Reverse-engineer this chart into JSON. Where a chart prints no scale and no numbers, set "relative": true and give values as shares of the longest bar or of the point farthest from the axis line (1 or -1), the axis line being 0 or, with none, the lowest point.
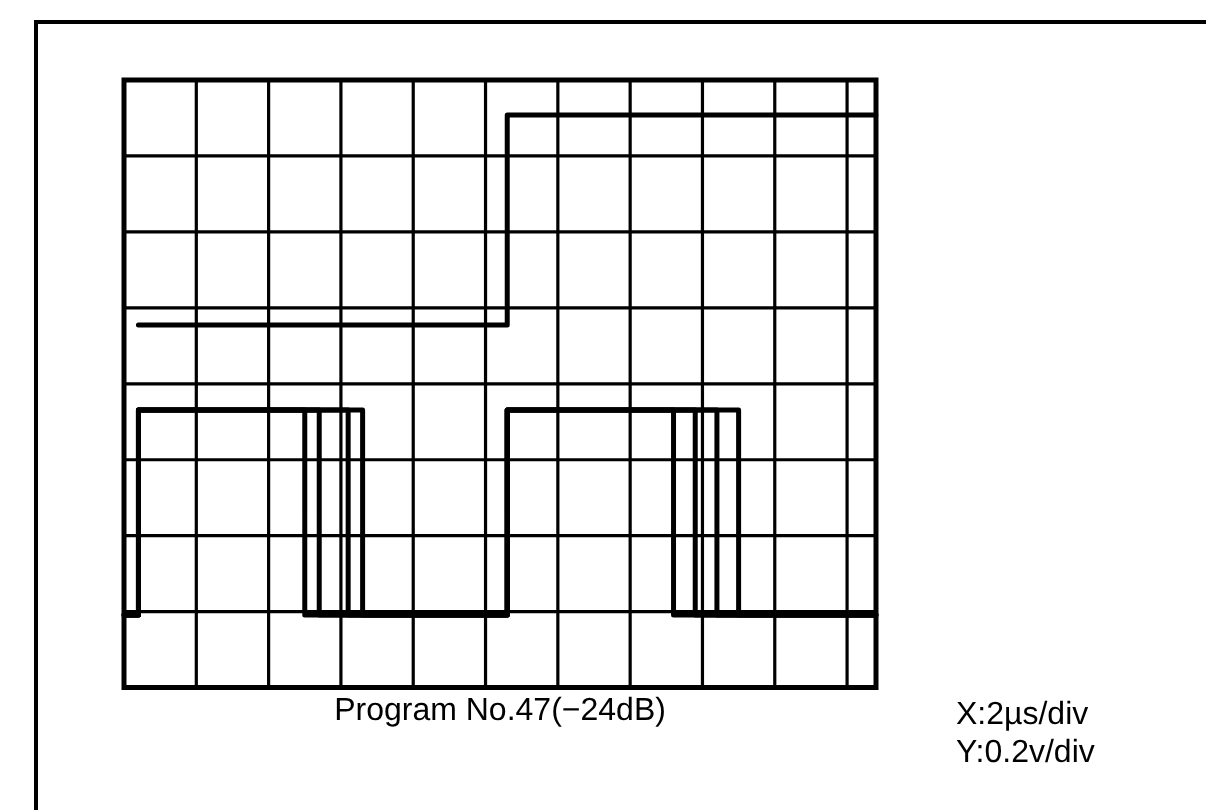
{
  "chart_data": {
    "type": "step",
    "relative": true,
    "grid": true,
    "legend": false,
    "xlabel": "Program No.47(−24dB)",
    "annotations": [
      "X:2µs/div",
      "Y:0.2v/div"
    ],
    "categories": [
      null,
      null,
      null,
      null,
      null,
      null,
      null,
      null,
      null,
      null,
      null,
      null,
      null,
      null,
      null,
      null,
      null,
      null,
      null,
      null,
      null,
      null,
      null,
      null,
      null,
      null,
      null,
      null,
      null,
      null,
      null,
      null,
      null,
      null,
      null,
      null,
      null,
      null,
      null,
      null,
      null,
      null,
      null,
      null,
      null,
      null,
      null,
      null,
      null,
      null,
      null,
      null,
      null,
      null,
      null,
      null,
      null,
      null,
      null,
      null,
      null,
      null,
      null,
      null,
      null,
      null,
      null,
      null,
      null,
      null,
      null,
      null,
      null,
      null,
      null,
      null,
      null,
      null,
      null,
      null,
      null,
      null,
      null,
      null,
      null,
      null,
      null,
      null,
      null,
      null,
      null,
      null,
      null,
      null,
      null,
      null,
      null,
      null,
      null,
      null,
      null,
      null,
      null,
      null,
      null
    ],
    "series": [
      {
        "color": "#000000",
        "values": [
          null,
          null,
          0.58,
          0.58,
          0.58,
          0.58,
          0.58,
          0.58,
          0.58,
          0.58,
          0.58,
          0.58,
          0.58,
          0.58,
          0.58,
          0.58,
          0.58,
          0.58,
          0.58,
          0.58,
          0.58,
          0.58,
          0.58,
          0.58,
          0.58,
          0.58,
          0.58,
          0.58,
          0.58,
          0.58,
          0.58,
          0.58,
          0.58,
          0.58,
          0.58,
          0.58,
          0.58,
          0.58,
          0.58,
          0.58,
          0.58,
          0.58,
          0.58,
          0.58,
          0.58,
          0.58,
          0.58,
          0.58,
          0.58,
          0.58,
          0.58,
          0.58,
          0.58,
          0.58,
          1,
          1,
          1,
          1,
          1,
          1,
          1,
          1,
          1,
          1,
          1,
          1,
          1,
          1,
          1,
          1,
          1,
          1,
          1,
          1,
          1,
          1,
          1,
          1,
          1,
          1,
          1,
          1,
          1,
          1,
          1,
          1,
          1,
          1,
          1,
          1,
          1,
          1,
          1,
          1,
          1,
          1,
          1,
          1,
          1,
          1,
          1,
          1,
          1,
          1,
          1
        ]
      },
      {
        "color": "#000000",
        "values": [
          0,
          0,
          0,
          0.41,
          0.41,
          0.41,
          0.41,
          0.41,
          0.41,
          0.41,
          0.41,
          0.41,
          0.41,
          0.41,
          0.41,
          0.41,
          0.41,
          0.41,
          0.41,
          0.41,
          0.41,
          0.41,
          0.41,
          0.41,
          0.41,
          0.41,
          0,
          0,
          0,
          0,
          0,
          0,
          0,
          0,
          0,
          0,
          0,
          0,
          0,
          0,
          0,
          0,
          0,
          0,
          0,
          0,
          0,
          0,
          0,
          0,
          0,
          0,
          0,
          0,
          0.41,
          0.41,
          0.41,
          0.41,
          0.41,
          0.41,
          0.41,
          0.41,
          0.41,
          0.41,
          0.41,
          0.41,
          0.41,
          0.41,
          0.41,
          0.41,
          0.41,
          0.41,
          0.41,
          0.41,
          0.41,
          0.41,
          0.41,
          0,
          0,
          0,
          0,
          0,
          0,
          0,
          0,
          0,
          0,
          0,
          0,
          0,
          0,
          0,
          0,
          0,
          0,
          0,
          0,
          0,
          0,
          0,
          0,
          0,
          0,
          0,
          0
        ]
      },
      {
        "color": "#000000",
        "values": [
          0,
          0,
          0,
          0.41,
          0.41,
          0.41,
          0.41,
          0.41,
          0.41,
          0.41,
          0.41,
          0.41,
          0.41,
          0.41,
          0.41,
          0.41,
          0.41,
          0.41,
          0.41,
          0.41,
          0.41,
          0.41,
          0.41,
          0.41,
          0.41,
          0.41,
          0.41,
          0.41,
          0,
          0,
          0,
          0,
          0,
          0,
          0,
          0,
          0,
          0,
          0,
          0,
          0,
          0,
          0,
          0,
          0,
          0,
          0,
          0,
          0,
          0,
          0,
          0,
          0,
          0,
          0.41,
          0.41,
          0.41,
          0.41,
          0.41,
          0.41,
          0.41,
          0.41,
          0.41,
          0.41,
          0.41,
          0.41,
          0.41,
          0.41,
          0.41,
          0.41,
          0.41,
          0.41,
          0.41,
          0.41,
          0.41,
          0.41,
          0.41,
          0.41,
          0.41,
          0.41,
          0,
          0,
          0,
          0,
          0,
          0,
          0,
          0,
          0,
          0,
          0,
          0,
          0,
          0,
          0,
          0,
          0,
          0,
          0,
          0,
          0,
          0,
          0,
          0,
          0
        ]
      },
      {
        "color": "#000000",
        "values": [
          0,
          0,
          0,
          0.41,
          0.41,
          0.41,
          0.41,
          0.41,
          0.41,
          0.41,
          0.41,
          0.41,
          0.41,
          0.41,
          0.41,
          0.41,
          0.41,
          0.41,
          0.41,
          0.41,
          0.41,
          0.41,
          0.41,
          0.41,
          0.41,
          0.41,
          0.41,
          0.41,
          0.41,
          0.41,
          0.41,
          0.41,
          0,
          0,
          0,
          0,
          0,
          0,
          0,
          0,
          0,
          0,
          0,
          0,
          0,
          0,
          0,
          0,
          0,
          0,
          0,
          0,
          0,
          0,
          0.41,
          0.41,
          0.41,
          0.41,
          0.41,
          0.41,
          0.41,
          0.41,
          0.41,
          0.41,
          0.41,
          0.41,
          0.41,
          0.41,
          0.41,
          0.41,
          0.41,
          0.41,
          0.41,
          0.41,
          0.41,
          0.41,
          0.41,
          0.41,
          0.41,
          0.41,
          0.41,
          0.41,
          0.41,
          0,
          0,
          0,
          0,
          0,
          0,
          0,
          0,
          0,
          0,
          0,
          0,
          0,
          0,
          0,
          0,
          0,
          0,
          0,
          0,
          0,
          0
        ]
      },
      {
        "color": "#000000",
        "values": [
          0,
          0,
          0,
          0.41,
          0.41,
          0.41,
          0.41,
          0.41,
          0.41,
          0.41,
          0.41,
          0.41,
          0.41,
          0.41,
          0.41,
          0.41,
          0.41,
          0.41,
          0.41,
          0.41,
          0.41,
          0.41,
          0.41,
          0.41,
          0.41,
          0.41,
          0.41,
          0.41,
          0.41,
          0.41,
          0.41,
          0.41,
          0.41,
          0.41,
          0,
          0,
          0,
          0,
          0,
          0,
          0,
          0,
          0,
          0,
          0,
          0,
          0,
          0,
          0,
          0,
          0,
          0,
          0,
          0,
          0.41,
          0.41,
          0.41,
          0.41,
          0.41,
          0.41,
          0.41,
          0.41,
          0.41,
          0.41,
          0.41,
          0.41,
          0.41,
          0.41,
          0.41,
          0.41,
          0.41,
          0.41,
          0.41,
          0.41,
          0.41,
          0.41,
          0.41,
          0.41,
          0.41,
          0.41,
          0.41,
          0.41,
          0.41,
          0.41,
          0.41,
          0.41,
          0,
          0,
          0,
          0,
          0,
          0,
          0,
          0,
          0,
          0,
          0,
          0,
          0,
          0,
          0,
          0,
          0,
          0,
          0
        ]
      }
    ]
  }
}
